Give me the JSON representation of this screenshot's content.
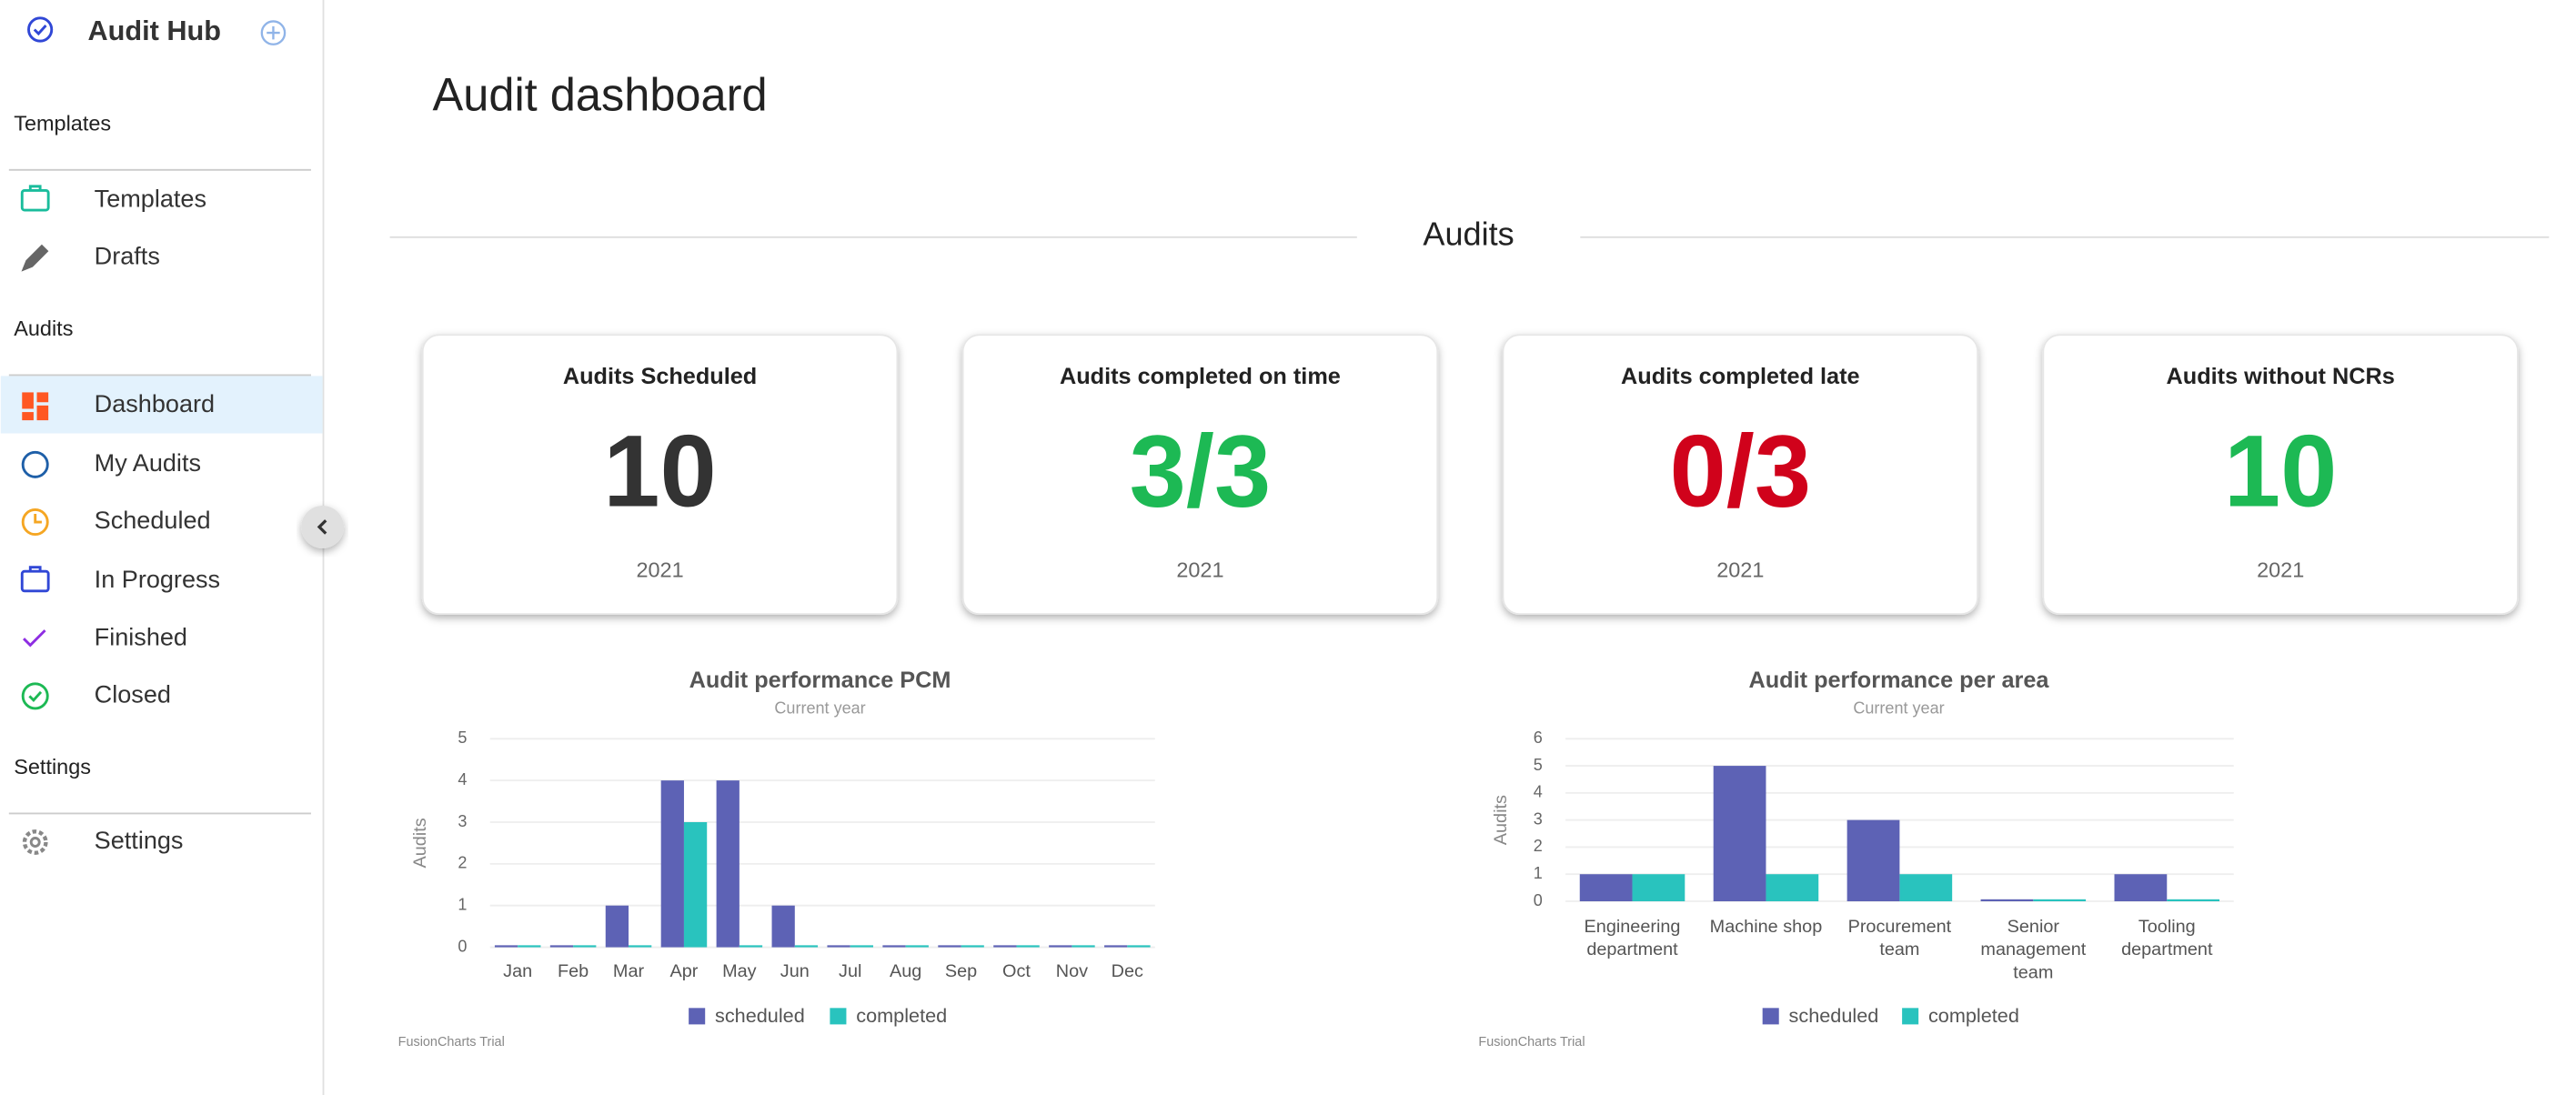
{
  "sidebar": {
    "app_title": "Audit Hub",
    "sections": [
      {
        "title": "Templates",
        "items": [
          "Templates",
          "Drafts"
        ]
      },
      {
        "title": "Audits",
        "items": [
          "Dashboard",
          "My Audits",
          "Scheduled",
          "In Progress",
          "Finished",
          "Closed"
        ]
      },
      {
        "title": "Settings",
        "items": [
          "Settings"
        ]
      }
    ]
  },
  "header": {
    "title": "Audit dashboard",
    "section_title": "Audits"
  },
  "cards": [
    {
      "title": "Audits Scheduled",
      "value": "10",
      "year": "2021",
      "color": "#333333"
    },
    {
      "title": "Audits completed on time",
      "value": "3/3",
      "year": "2021",
      "color": "#1db954"
    },
    {
      "title": "Audits completed late",
      "value": "0/3",
      "year": "2021",
      "color": "#d0021b"
    },
    {
      "title": "Audits without NCRs",
      "value": "10",
      "year": "2021",
      "color": "#1db954"
    }
  ],
  "chart_data": [
    {
      "type": "bar",
      "title": "Audit performance PCM",
      "subtitle": "Current year",
      "y_label": "Audits",
      "watermark": "FusionCharts Trial",
      "categories": [
        "Jan",
        "Feb",
        "Mar",
        "Apr",
        "May",
        "Jun",
        "Jul",
        "Aug",
        "Sep",
        "Oct",
        "Nov",
        "Dec"
      ],
      "series": [
        {
          "name": "scheduled",
          "color": "#5d62b5",
          "values": [
            0,
            0,
            1,
            4,
            4,
            1,
            0,
            0,
            0,
            0,
            0,
            0
          ]
        },
        {
          "name": "completed",
          "color": "#29c3be",
          "values": [
            0,
            0,
            0,
            3,
            0,
            0,
            0,
            0,
            0,
            0,
            0,
            0
          ]
        }
      ],
      "ylim": [
        0,
        5
      ],
      "yticks": [
        0,
        1,
        2,
        3,
        4,
        5
      ],
      "grid": true
    },
    {
      "type": "bar",
      "title": "Audit performance per area",
      "subtitle": "Current year",
      "y_label": "Audits",
      "watermark": "FusionCharts Trial",
      "categories": [
        "Engineering department",
        "Machine shop",
        "Procurement team",
        "Senior management team",
        "Tooling department"
      ],
      "series": [
        {
          "name": "scheduled",
          "color": "#5d62b5",
          "values": [
            1,
            5,
            3,
            0,
            1
          ]
        },
        {
          "name": "completed",
          "color": "#29c3be",
          "values": [
            1,
            1,
            1,
            0,
            0
          ]
        }
      ],
      "ylim": [
        0,
        6
      ],
      "yticks": [
        0,
        1,
        2,
        3,
        4,
        5,
        6
      ],
      "grid": true
    }
  ]
}
